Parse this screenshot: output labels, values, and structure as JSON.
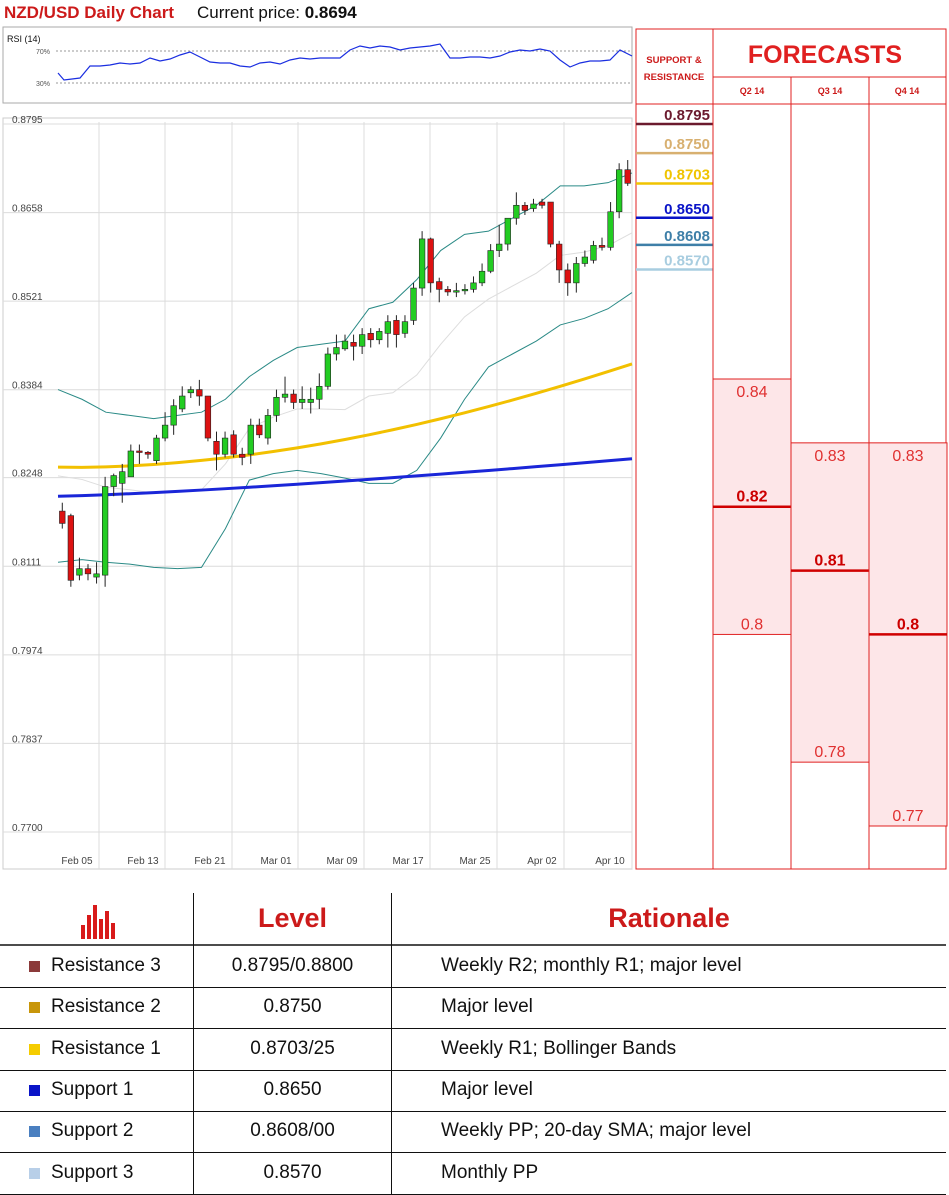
{
  "header": {
    "title": "NZD/USD Daily Chart",
    "price_label": "Current price:",
    "price_value": "0.8694"
  },
  "rsi": {
    "label": "RSI (14)",
    "upper": "70%",
    "lower": "30%"
  },
  "chart_data": [
    {
      "type": "candlestick",
      "title": "NZD/USD Daily Chart",
      "y_ticks": [
        "0.8795",
        "0.8658",
        "0.8521",
        "0.8384",
        "0.8248",
        "0.8111",
        "0.7974",
        "0.7837",
        "0.7700"
      ],
      "x_ticks": [
        "Feb 05",
        "Feb 13",
        "Feb 21",
        "Mar 01",
        "Mar 09",
        "Mar 17",
        "Mar 25",
        "Apr 02",
        "Apr 10"
      ],
      "ylim": [
        0.77,
        0.8795
      ],
      "candles": [
        [
          0.8187,
          0.82,
          0.8168,
          0.816
        ],
        [
          0.818,
          0.8183,
          0.808,
          0.807
        ],
        [
          0.8088,
          0.8115,
          0.8098,
          0.808
        ],
        [
          0.8098,
          0.8105,
          0.809,
          0.808
        ],
        [
          0.8085,
          0.8108,
          0.809,
          0.8075
        ],
        [
          0.8088,
          0.824,
          0.8225,
          0.807
        ],
        [
          0.8225,
          0.8245,
          0.8242,
          0.821
        ],
        [
          0.823,
          0.826,
          0.8248,
          0.82
        ],
        [
          0.824,
          0.829,
          0.828,
          0.824
        ],
        [
          0.828,
          0.829,
          0.8278,
          0.826
        ],
        [
          0.8278,
          0.828,
          0.8275,
          0.8268
        ],
        [
          0.8265,
          0.8305,
          0.83,
          0.826
        ],
        [
          0.83,
          0.834,
          0.832,
          0.8295
        ],
        [
          0.832,
          0.836,
          0.835,
          0.8305
        ],
        [
          0.8345,
          0.838,
          0.8365,
          0.834
        ],
        [
          0.837,
          0.838,
          0.8375,
          0.8362
        ],
        [
          0.8375,
          0.839,
          0.8365,
          0.835
        ],
        [
          0.8365,
          0.8365,
          0.83,
          0.8295
        ],
        [
          0.8295,
          0.831,
          0.8275,
          0.825
        ],
        [
          0.8275,
          0.831,
          0.83,
          0.827
        ],
        [
          0.8305,
          0.8312,
          0.8275,
          0.827
        ],
        [
          0.8275,
          0.8285,
          0.827,
          0.8258
        ],
        [
          0.8275,
          0.833,
          0.832,
          0.826
        ],
        [
          0.832,
          0.833,
          0.8305,
          0.83
        ],
        [
          0.83,
          0.8345,
          0.8335,
          0.829
        ],
        [
          0.8335,
          0.8375,
          0.8363,
          0.8325
        ],
        [
          0.8363,
          0.8395,
          0.8368,
          0.8355
        ],
        [
          0.8368,
          0.8375,
          0.8355,
          0.8345
        ],
        [
          0.8355,
          0.838,
          0.836,
          0.8345
        ],
        [
          0.8355,
          0.8378,
          0.836,
          0.8338
        ],
        [
          0.836,
          0.84,
          0.838,
          0.8345
        ],
        [
          0.838,
          0.844,
          0.843,
          0.8375
        ],
        [
          0.843,
          0.846,
          0.844,
          0.842
        ],
        [
          0.8438,
          0.846,
          0.845,
          0.8435
        ],
        [
          0.8448,
          0.846,
          0.8442,
          0.842
        ],
        [
          0.8442,
          0.847,
          0.846,
          0.843
        ],
        [
          0.8462,
          0.847,
          0.8452,
          0.844
        ],
        [
          0.8452,
          0.847,
          0.8465,
          0.8445
        ],
        [
          0.8462,
          0.849,
          0.848,
          0.844
        ],
        [
          0.8482,
          0.849,
          0.846,
          0.844
        ],
        [
          0.8462,
          0.849,
          0.848,
          0.8455
        ],
        [
          0.8482,
          0.854,
          0.8532,
          0.8475
        ],
        [
          0.8532,
          0.862,
          0.8608,
          0.852
        ],
        [
          0.8608,
          0.861,
          0.854,
          0.8525
        ],
        [
          0.8542,
          0.8548,
          0.853,
          0.851
        ],
        [
          0.853,
          0.8535,
          0.8526,
          0.852
        ],
        [
          0.8528,
          0.854,
          0.8528,
          0.8518
        ],
        [
          0.8528,
          0.8538,
          0.853,
          0.8522
        ],
        [
          0.853,
          0.855,
          0.854,
          0.8525
        ],
        [
          0.854,
          0.857,
          0.8558,
          0.8535
        ],
        [
          0.8558,
          0.86,
          0.859,
          0.8555
        ],
        [
          0.859,
          0.863,
          0.86,
          0.858
        ],
        [
          0.86,
          0.864,
          0.864,
          0.859
        ],
        [
          0.864,
          0.868,
          0.866,
          0.863
        ],
        [
          0.866,
          0.8665,
          0.8652,
          0.8645
        ],
        [
          0.8655,
          0.867,
          0.8662,
          0.865
        ],
        [
          0.8665,
          0.867,
          0.866,
          0.8655
        ],
        [
          0.8665,
          0.8665,
          0.86,
          0.8595
        ],
        [
          0.86,
          0.8605,
          0.856,
          0.854
        ],
        [
          0.856,
          0.857,
          0.854,
          0.852
        ],
        [
          0.854,
          0.858,
          0.857,
          0.8525
        ],
        [
          0.857,
          0.859,
          0.858,
          0.8565
        ],
        [
          0.8575,
          0.8605,
          0.8598,
          0.857
        ],
        [
          0.8598,
          0.861,
          0.8595,
          0.859
        ],
        [
          0.8595,
          0.8665,
          0.865,
          0.859
        ],
        [
          0.865,
          0.8725,
          0.8715,
          0.864
        ],
        [
          0.8715,
          0.873,
          0.8694,
          0.869
        ]
      ],
      "sma200": [
        0.821,
        0.8268
      ],
      "sma100": [
        0.8255,
        0.8415
      ],
      "bb_upper": [
        0.8375,
        0.836,
        0.834,
        0.8335,
        0.833,
        0.8335,
        0.834,
        0.836,
        0.8395,
        0.842,
        0.844,
        0.8445,
        0.845,
        0.85,
        0.851,
        0.8545,
        0.859,
        0.8615,
        0.862,
        0.864,
        0.866,
        0.869,
        0.869,
        0.8695,
        0.871
      ],
      "bb_lower": [
        0.8108,
        0.8112,
        0.8108,
        0.8105,
        0.81,
        0.8098,
        0.81,
        0.816,
        0.8235,
        0.8245,
        0.825,
        0.8245,
        0.8238,
        0.823,
        0.823,
        0.825,
        0.83,
        0.836,
        0.841,
        0.843,
        0.845,
        0.8475,
        0.8485,
        0.85,
        0.8525
      ]
    },
    {
      "type": "table",
      "title": "FORECASTS",
      "columns": [
        "Q2 14",
        "Q3 14",
        "Q4 14"
      ],
      "forecasts": [
        {
          "quarter": "Q2 14",
          "high": 0.84,
          "mid": 0.82,
          "low": 0.8,
          "high_label": "0.84",
          "mid_label": "0.82",
          "low_label": "0.8"
        },
        {
          "quarter": "Q3 14",
          "high": 0.83,
          "mid": 0.81,
          "low": 0.78,
          "high_label": "0.83",
          "mid_label": "0.81",
          "low_label": "0.78"
        },
        {
          "quarter": "Q4 14",
          "high": 0.83,
          "mid": 0.8,
          "low": 0.77,
          "high_label": "0.83",
          "mid_label": "0.8",
          "low_label": "0.77"
        }
      ]
    }
  ],
  "sr_panel": {
    "title_line1": "SUPPORT &",
    "title_line2": "RESISTANCE",
    "levels": [
      {
        "label": "0.8795",
        "value": 0.8795,
        "color": "#6b1a2e"
      },
      {
        "label": "0.8750",
        "value": 0.875,
        "color": "#d8b070"
      },
      {
        "label": "0.8703",
        "value": 0.8703,
        "color": "#f0c400"
      },
      {
        "label": "0.8650",
        "value": 0.865,
        "color": "#0a14c8"
      },
      {
        "label": "0.8608",
        "value": 0.8608,
        "color": "#3e7fa8"
      },
      {
        "label": "0.8570",
        "value": 0.857,
        "color": "#a8cde0"
      }
    ]
  },
  "table": {
    "col_level": "Level",
    "col_rationale": "Rationale",
    "rows": [
      {
        "name": "Resistance 3",
        "level": "0.8795/0.8800",
        "rationale": "Weekly R2; monthly R1; major level",
        "color": "#8b3a3a"
      },
      {
        "name": "Resistance 2",
        "level": "0.8750",
        "rationale": "Major level",
        "color": "#c8960a"
      },
      {
        "name": "Resistance 1",
        "level": "0.8703/25",
        "rationale": "Weekly R1; Bollinger Bands",
        "color": "#f5cc00"
      },
      {
        "name": "Support 1",
        "level": "0.8650",
        "rationale": "Major level",
        "color": "#0a14c8"
      },
      {
        "name": "Support 2",
        "level": "0.8608/00",
        "rationale": "Weekly PP; 20-day SMA; major level",
        "color": "#4a7fc0"
      },
      {
        "name": "Support 3",
        "level": "0.8570",
        "rationale": "Monthly PP",
        "color": "#b8cfe8"
      }
    ]
  }
}
